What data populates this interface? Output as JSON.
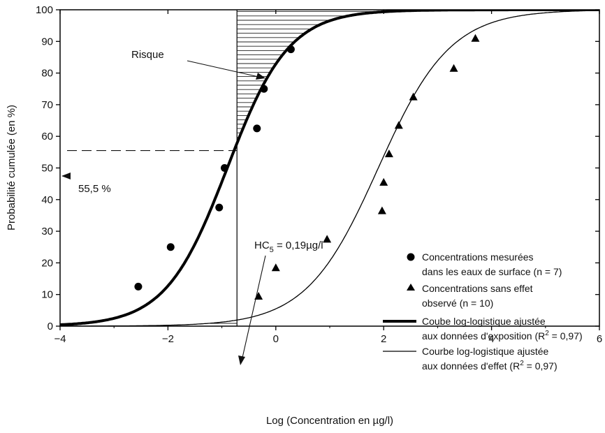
{
  "chart_data": {
    "type": "scatter",
    "xlabel": "Log (Concentration en µg/l)",
    "ylabel": "Probabilité cumulée (en %)",
    "xlim": [
      -4,
      6
    ],
    "ylim": [
      0,
      100
    ],
    "x_ticks": [
      -4,
      -2,
      0,
      2,
      4,
      6
    ],
    "y_ticks": [
      0,
      10,
      20,
      30,
      40,
      50,
      60,
      70,
      80,
      90,
      100
    ],
    "grid": false,
    "legend_position": "bottom-right",
    "series": [
      {
        "name": "Concentrations mesurées dans les eaux de surface (n = 7)",
        "kind": "scatter",
        "marker": "circle",
        "x": [
          -2.55,
          -1.95,
          -1.05,
          -0.95,
          -0.35,
          -0.22,
          0.28
        ],
        "y": [
          12.5,
          25,
          37.5,
          50,
          62.5,
          75,
          87.5
        ]
      },
      {
        "name": "Concentrations sans effet observé (n = 10)",
        "kind": "scatter",
        "marker": "triangle",
        "x": [
          -0.32,
          0.0,
          0.95,
          1.97,
          2.0,
          2.1,
          2.28,
          2.55,
          3.3,
          3.7
        ],
        "y": [
          9.5,
          18.5,
          27.5,
          36.5,
          45.5,
          54.5,
          63.5,
          72.5,
          81.5,
          91
        ]
      },
      {
        "name": "Coube log-logistique ajustée aux données d'exposition (R² = 0,97)",
        "kind": "curve",
        "stroke": "thick",
        "x50": -0.9,
        "slope": 1.75
      },
      {
        "name": "Courbe log-logistique ajustée aux données d'effet (R² = 0,97)",
        "kind": "curve",
        "stroke": "thin",
        "x50": 1.9,
        "slope": 1.5
      }
    ],
    "annotations": {
      "risk_label": "Risque",
      "prob_label": "55,5 %",
      "prob_value": 55.5,
      "hc5_prefix": "HC",
      "hc5_sub": "5",
      "hc5_suffix": " = 0,19µg/l",
      "hc5_x": -0.72
    },
    "legend": [
      {
        "lines": [
          "Concentrations mesurées",
          "dans les eaux de surface (n = 7)"
        ]
      },
      {
        "lines": [
          "Concentrations sans effet",
          "observé (n = 10)"
        ]
      },
      {
        "lines": [
          "Coube log-logistique ajustée",
          "aux données d'exposition (R",
          "2",
          " = 0,97)"
        ]
      },
      {
        "lines": [
          "Courbe log-logistique ajustée",
          "aux données d'effet (R",
          "2",
          " = 0,97)"
        ]
      }
    ]
  }
}
